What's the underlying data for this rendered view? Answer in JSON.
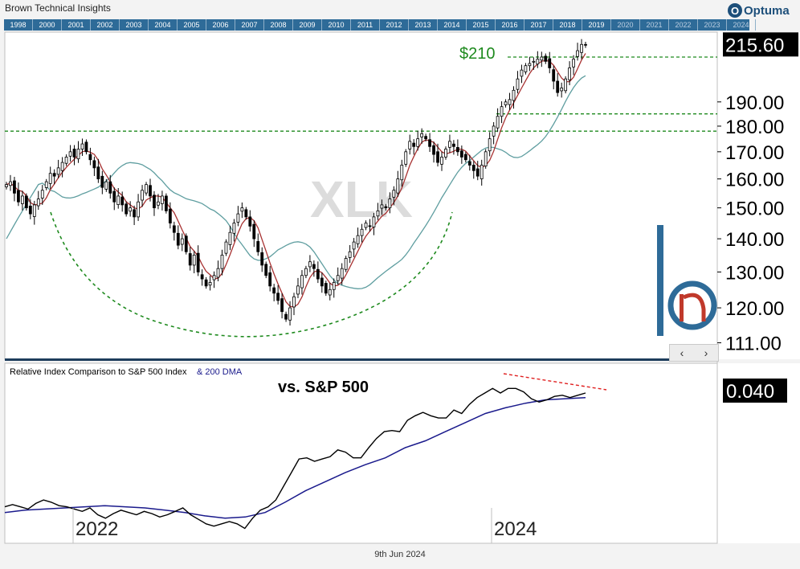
{
  "header": {
    "title": "Brown Technical Insights",
    "logo_text": "Optuma",
    "logo_icon": "O",
    "date": "9th Jun 2024"
  },
  "timeline": {
    "years": [
      "1998",
      "2000",
      "2001",
      "2002",
      "2003",
      "2004",
      "2005",
      "2006",
      "2007",
      "2008",
      "2009",
      "2010",
      "2011",
      "2012",
      "2013",
      "2014",
      "2015",
      "2016",
      "2017",
      "2018",
      "2019",
      "2020",
      "2021",
      "2022",
      "2023",
      "2024"
    ],
    "color": "#2e6b98"
  },
  "nav": {
    "prev": "‹",
    "next": "›"
  },
  "chart_data": [
    {
      "type": "candlestick",
      "watermark": "XLK",
      "y_scale": "log",
      "ylim": [
        107,
        222
      ],
      "ytick_labels": [
        "111.00",
        "120.00",
        "130.00",
        "140.00",
        "150.00",
        "160.00",
        "170.00",
        "180.00",
        "190.00"
      ],
      "last_price_label": "215.60",
      "last_price": 215.6,
      "x_range": [
        "2021-06",
        "2024-12"
      ],
      "annotations": [
        {
          "text": "$210",
          "level": 210,
          "color": "#1e8a1e"
        }
      ],
      "levels": [
        {
          "value": 210,
          "style": "dashed",
          "color": "#1e8a1e"
        },
        {
          "value": 185,
          "style": "dashed",
          "color": "#1e8a1e"
        },
        {
          "value": 178,
          "style": "dashed",
          "color": "#1e8a1e"
        }
      ],
      "series": [
        {
          "name": "Weekly candles",
          "color": "#000000",
          "closes": [
            158,
            159,
            155,
            152,
            154,
            150,
            148,
            151,
            153,
            156,
            159,
            162,
            161,
            164,
            166,
            168,
            170,
            168,
            171,
            173,
            170,
            167,
            164,
            160,
            157,
            159,
            155,
            152,
            154,
            151,
            148,
            150,
            147,
            152,
            156,
            158,
            154,
            150,
            152,
            154,
            149,
            145,
            142,
            138,
            140,
            136,
            132,
            135,
            130,
            128,
            126,
            127,
            129,
            131,
            135,
            139,
            142,
            145,
            148,
            150,
            147,
            144,
            140,
            136,
            132,
            129,
            126,
            124,
            122,
            119,
            117,
            120,
            123,
            126,
            129,
            131,
            133,
            131,
            128,
            126,
            124,
            125,
            127,
            129,
            131,
            134,
            136,
            139,
            141,
            143,
            145,
            144,
            147,
            149,
            151,
            150,
            153,
            156,
            160,
            165,
            170,
            174,
            172,
            175,
            177,
            175,
            172,
            169,
            166,
            168,
            171,
            174,
            172,
            170,
            168,
            167,
            165,
            163,
            161,
            165,
            170,
            175,
            180,
            184,
            188,
            190,
            191,
            195,
            200,
            204,
            206,
            207,
            208,
            209,
            210,
            208,
            205,
            199,
            194,
            196,
            200,
            205,
            209,
            213,
            216,
            215.6
          ]
        },
        {
          "name": "Short moving average",
          "color": "#a83232"
        },
        {
          "name": "Long moving average",
          "color": "#5f9ea0"
        }
      ]
    },
    {
      "type": "line",
      "title": "Relative Index Comparison to S&P 500 Index",
      "title_suffix": "& 200 DMA",
      "annotation": "vs. S&P 500",
      "last_value_label": "0.040",
      "x_tick_labels": [
        "2022",
        "2024"
      ],
      "trendline_color": "#e02020",
      "series": [
        {
          "name": "Relative",
          "color": "#000000",
          "values": [
            0.03,
            0.0302,
            0.03,
            0.0298,
            0.0303,
            0.0306,
            0.0304,
            0.0301,
            0.03,
            0.0298,
            0.0296,
            0.0299,
            0.0293,
            0.029,
            0.0294,
            0.0297,
            0.0295,
            0.0293,
            0.0296,
            0.0294,
            0.0291,
            0.0293,
            0.0296,
            0.0299,
            0.0293,
            0.0289,
            0.0285,
            0.0283,
            0.0285,
            0.0287,
            0.0285,
            0.0281,
            0.029,
            0.0297,
            0.03,
            0.0306,
            0.0318,
            0.033,
            0.0342,
            0.0343,
            0.034,
            0.0342,
            0.0344,
            0.035,
            0.0348,
            0.0343,
            0.0343,
            0.0352,
            0.036,
            0.0366,
            0.0367,
            0.0366,
            0.0376,
            0.038,
            0.0383,
            0.038,
            0.0378,
            0.0378,
            0.0385,
            0.0382,
            0.039,
            0.0396,
            0.04,
            0.0404,
            0.04,
            0.0404,
            0.0404,
            0.0401,
            0.0395,
            0.0392,
            0.0394,
            0.0397,
            0.0398,
            0.0396,
            0.0398,
            0.04
          ]
        },
        {
          "name": "200 DMA",
          "color": "#1a1a8c",
          "values": [
            0.0295,
            0.0297,
            0.0298,
            0.0299,
            0.03,
            0.0301,
            0.03,
            0.0299,
            0.0297,
            0.0295,
            0.0292,
            0.029,
            0.0291,
            0.0295,
            0.0304,
            0.0314,
            0.0322,
            0.033,
            0.0337,
            0.0343,
            0.0352,
            0.0358,
            0.0366,
            0.0374,
            0.0382,
            0.0387,
            0.0391,
            0.0394,
            0.0395,
            0.0396
          ]
        }
      ]
    }
  ]
}
